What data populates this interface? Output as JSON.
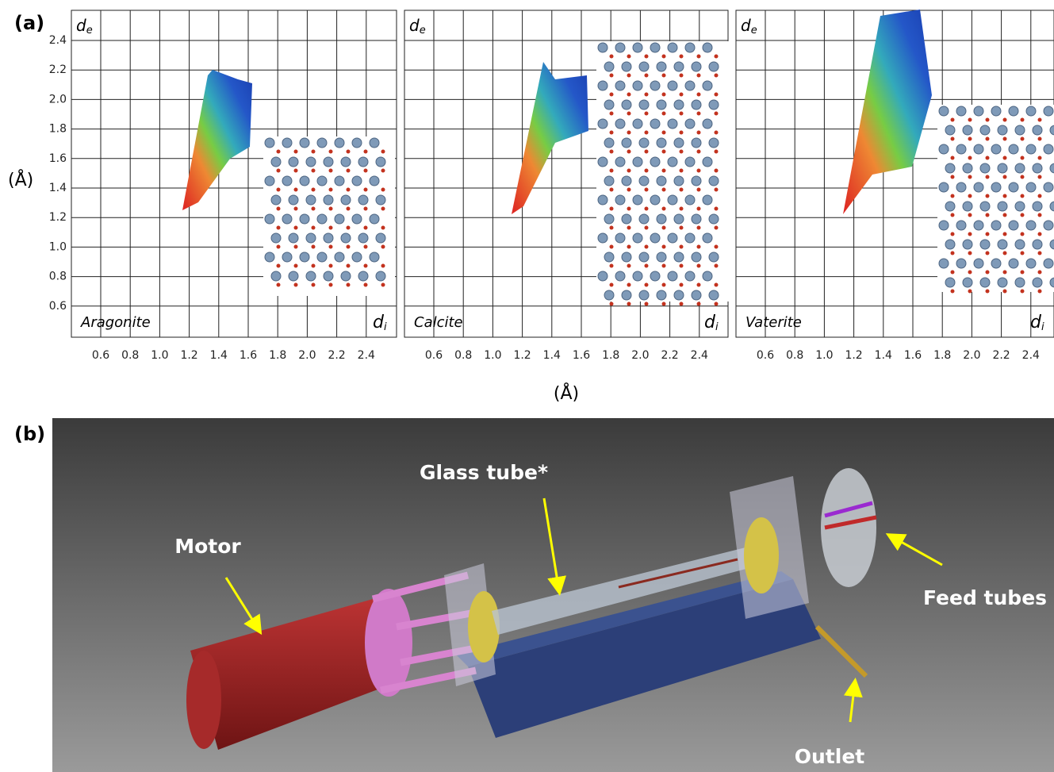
{
  "panel_a": {
    "label": "(a)",
    "y_axis_label": "(Å)",
    "x_axis_label": "(Å)",
    "yticks": [
      "2.4",
      "2.2",
      "2.0",
      "1.8",
      "1.6",
      "1.4",
      "1.2",
      "1.0",
      "0.8",
      "0.6"
    ],
    "plots": [
      {
        "name": "Aragonite",
        "y_label": "d",
        "y_subscript": "e",
        "x_label": "d",
        "x_subscript": "i",
        "xticks": [
          "0.6",
          "0.8",
          "1.0",
          "1.2",
          "1.4",
          "1.6",
          "1.8",
          "2.0",
          "2.2",
          "2.4"
        ]
      },
      {
        "name": "Calcite",
        "y_label": "d",
        "y_subscript": "e",
        "x_label": "d",
        "x_subscript": "i",
        "xticks": [
          "0.6",
          "0.8",
          "1.0",
          "1.2",
          "1.4",
          "1.6",
          "1.8",
          "2.0",
          "2.2",
          "2.4"
        ]
      },
      {
        "name": "Vaterite",
        "y_label": "d",
        "y_subscript": "e",
        "x_label": "d",
        "x_subscript": "i",
        "xticks": [
          "0.6",
          "0.8",
          "1.0",
          "1.2",
          "1.4",
          "1.6",
          "1.8",
          "2.0",
          "2.2",
          "2.4"
        ]
      }
    ]
  },
  "panel_b": {
    "label": "(b)",
    "callouts": [
      "Glass tube*",
      "Motor",
      "Feed tubes",
      "Outlet"
    ]
  }
}
